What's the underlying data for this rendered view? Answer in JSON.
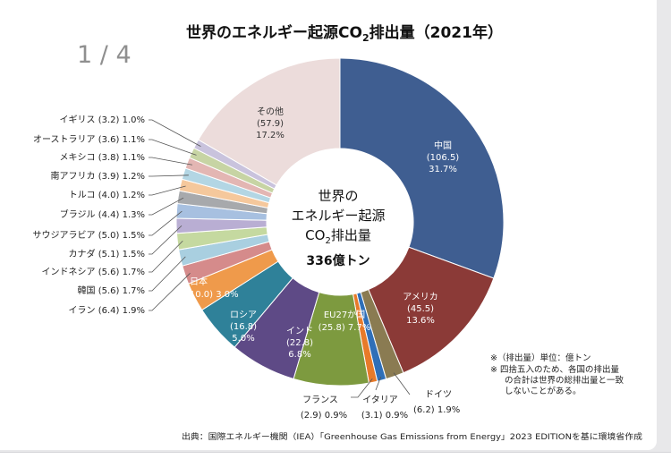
{
  "page_indicator": "1 / 4",
  "chart_data": {
    "type": "pie",
    "title_main": "世界のエネルギー起源CO",
    "title_sub": "2",
    "title_tail": "排出量（2021年）",
    "center_line1": "世界の",
    "center_line2": "エネルギー起源",
    "center_line3_a": "CO",
    "center_line3_sub": "2",
    "center_line3_b": "排出量",
    "center_total": "336億トン",
    "slices": [
      {
        "name": "中国",
        "value": 106.5,
        "pct": "31.7%",
        "value_label": "(106.5)",
        "color": "#3f5e91",
        "label_color": "#ffffff"
      },
      {
        "name": "アメリカ",
        "value": 45.5,
        "pct": "13.6%",
        "value_label": "(45.5)",
        "color": "#8b3a37",
        "label_color": "#ffffff"
      },
      {
        "name": "ドイツ",
        "value": 6.2,
        "pct": "1.9%",
        "value_label": "(6.2)",
        "color": "#8a7b52"
      },
      {
        "name": "イタリア",
        "value": 3.1,
        "pct": "0.9%",
        "value_label": "(3.1)",
        "color": "#2f6fb8"
      },
      {
        "name": "フランス",
        "value": 2.9,
        "pct": "0.9%",
        "value_label": "(2.9)",
        "color": "#e77a2a"
      },
      {
        "name": "EU27か国",
        "value": 25.8,
        "pct": "7.7%",
        "value_label": "(25.8)",
        "color": "#7d9a3f",
        "label_color": "#ffffff"
      },
      {
        "name": "インド",
        "value": 22.8,
        "pct": "6.8%",
        "value_label": "(22.8)",
        "color": "#5e4a86",
        "label_color": "#ffffff"
      },
      {
        "name": "ロシア",
        "value": 16.8,
        "pct": "5.0%",
        "value_label": "(16.8)",
        "color": "#2f8199",
        "label_color": "#ffffff"
      },
      {
        "name": "日本",
        "value": 10.0,
        "pct": "3.0%",
        "value_label": "(10.0)",
        "color": "#ef9a4b",
        "label_color": "#ffffff"
      },
      {
        "name": "イラン",
        "value": 6.4,
        "pct": "1.9%",
        "value_label": "(6.4)",
        "color": "#d58b8b"
      },
      {
        "name": "韓国",
        "value": 5.6,
        "pct": "1.7%",
        "value_label": "(5.6)",
        "color": "#a9cfe0"
      },
      {
        "name": "インドネシア",
        "value": 5.6,
        "pct": "1.7%",
        "value_label": "(5.6)",
        "color": "#c5d9a0"
      },
      {
        "name": "カナダ",
        "value": 5.1,
        "pct": "1.5%",
        "value_label": "(5.1)",
        "color": "#b9aed3"
      },
      {
        "name": "サウジアラビア",
        "value": 5.0,
        "pct": "1.5%",
        "value_label": "(5.0)",
        "color": "#a7c0e0"
      },
      {
        "name": "ブラジル",
        "value": 4.4,
        "pct": "1.3%",
        "value_label": "(4.4)",
        "color": "#a7a9ac"
      },
      {
        "name": "トルコ",
        "value": 4.0,
        "pct": "1.2%",
        "value_label": "(4.0)",
        "color": "#f5c89c"
      },
      {
        "name": "南アフリカ",
        "value": 3.9,
        "pct": "1.2%",
        "value_label": "(3.9)",
        "color": "#b3d6e4"
      },
      {
        "name": "メキシコ",
        "value": 3.8,
        "pct": "1.1%",
        "value_label": "(3.8)",
        "color": "#e3b6b3"
      },
      {
        "name": "オーストラリア",
        "value": 3.6,
        "pct": "1.1%",
        "value_label": "(3.6)",
        "color": "#c7d4a4"
      },
      {
        "name": "イギリス",
        "value": 3.2,
        "pct": "1.0%",
        "value_label": "(3.2)",
        "color": "#c9c3dd"
      },
      {
        "name": "その他",
        "value": 57.9,
        "pct": "17.2%",
        "value_label": "(57.9)",
        "color": "#ecdcdb",
        "label_color": "#333333"
      }
    ],
    "notes": [
      "※（排出量）単位：億トン",
      "※ 四捨五入のため、各国の排出量",
      "の合計は世界の総排出量と一致",
      "しないことがある。"
    ],
    "source": "出典：国際エネルギー機関（IEA）「Greenhouse Gas Emissions from Energy」2023 EDITIONを基に環境省作成"
  }
}
